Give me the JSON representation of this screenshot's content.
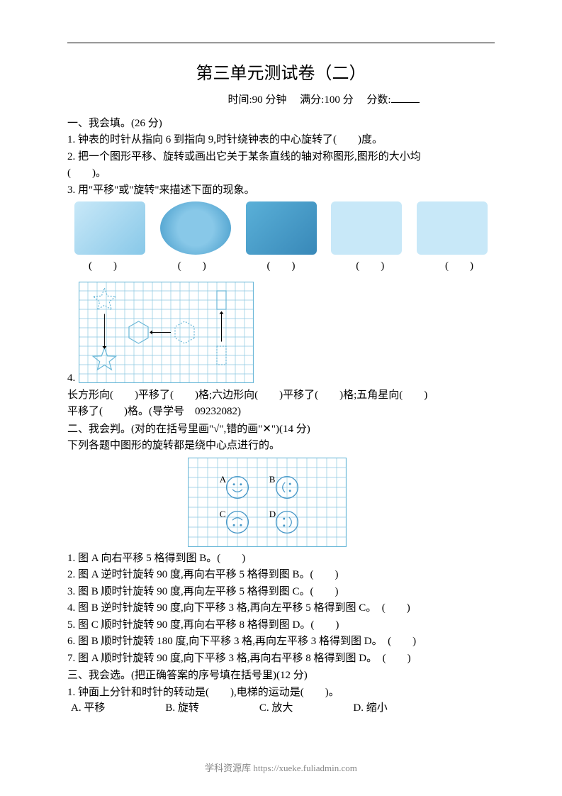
{
  "title": "第三单元测试卷（二）",
  "subtitle_time": "时间:90 分钟",
  "subtitle_full": "满分:100 分",
  "subtitle_score": "分数:",
  "section1": {
    "header": "一、我会填。(26 分)",
    "q1": "1. 钟表的时针从指向 6 到指向 9,时针绕钟表的中心旋转了(　　)度。",
    "q2": "2. 把一个图形平移、旋转或画出它关于某条直线的轴对称图形,图形的大小均",
    "q2b": "(　　)。",
    "q3": "3. 用\"平移\"或\"旋转\"来描述下面的现象。",
    "brackets": [
      "(　　)",
      "(　　)",
      "(　　)",
      "(　　)",
      "(　　)"
    ],
    "q4_label": "4.",
    "q4_text1": "长方形向(　　)平移了(　　)格;六边形向(　　)平移了(　　)格;五角星向(　　)",
    "q4_text2": "平移了(　　)格。(导学号　09232082)"
  },
  "section2": {
    "header": "二、我会判。(对的在括号里画\"√\",错的画\"✕\")(14 分)",
    "intro": "下列各题中图形的旋转都是绕中心点进行的。",
    "q1": "1. 图 A 向右平移 5 格得到图 B。(　　)",
    "q2": "2. 图 A 逆时针旋转 90 度,再向右平移 5 格得到图 B。(　　)",
    "q3": "3. 图 B 顺时针旋转 90 度,再向左平移 5 格得到图 C。(　　)",
    "q4": "4. 图 B 逆时针旋转 90 度,向下平移 3 格,再向左平移 5 格得到图 C。　(　　)",
    "q5": "5. 图 C 顺时针旋转 90 度,再向右平移 8 格得到图 D。(　　)",
    "q6": "6. 图 B 顺时针旋转 180 度,向下平移 3 格,再向左平移 3 格得到图 D。　(　　)",
    "q7": "7. 图 A 顺时针旋转 90 度,向下平移 3 格,再向右平移 8 格得到图 D。　(　　)"
  },
  "section3": {
    "header": "三、我会选。(把正确答案的序号填在括号里)(12 分)",
    "q1": "1. 钟面上分针和时针的转动是(　　),电梯的运动是(　　)。",
    "choices": [
      "A. 平移",
      "B. 旋转",
      "C. 放大",
      "D. 缩小"
    ]
  },
  "grid1": {
    "cell_size": 13,
    "cols": 19,
    "rows": 11,
    "border_color": "#6bb8d8",
    "grid_color": "#8cc8e0",
    "background": "#ffffff"
  },
  "grid2": {
    "cell_size": 14,
    "cols": 16,
    "rows": 9,
    "border_color": "#6bb8d8",
    "grid_color": "#8cc8e0",
    "circle_color": "#4898c8",
    "labels": [
      "A",
      "B",
      "C",
      "D"
    ]
  },
  "footer": "学科资源库 https://xueke.fuliadmin.com"
}
